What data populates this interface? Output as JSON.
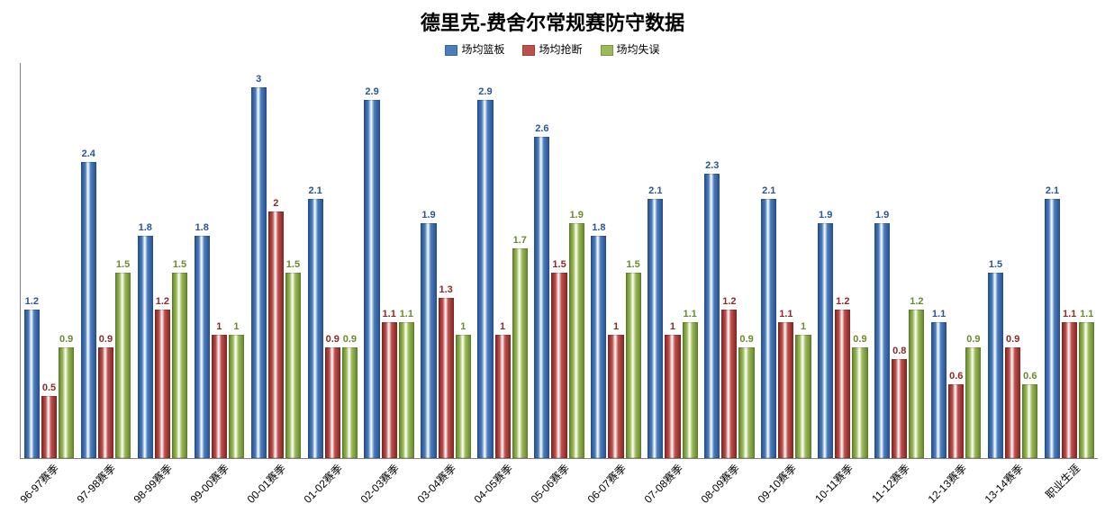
{
  "chart": {
    "type": "bar",
    "title": "德里克-费舍尔常规赛防守数据",
    "title_fontsize": 22,
    "title_color": "#000000",
    "background_color": "#ffffff",
    "axis_color": "#808080",
    "ymax": 3.2,
    "series": [
      {
        "name": "场均篮板",
        "color": "#4a7ebb",
        "label_color": "#2a5599",
        "gradient_dark": "#2a5599"
      },
      {
        "name": "场均抢断",
        "color": "#c0504d",
        "label_color": "#8b2a27",
        "gradient_dark": "#8b2a27"
      },
      {
        "name": "场均失误",
        "color": "#9bbb59",
        "label_color": "#6a8a2f",
        "gradient_dark": "#6a8a2f"
      }
    ],
    "categories": [
      "96-97赛季",
      "97-98赛季",
      "98-99赛季",
      "99-00赛季",
      "00-01赛季",
      "01-02赛季",
      "02-03赛季",
      "03-04赛季",
      "04-05赛季",
      "05-06赛季",
      "06-07赛季",
      "07-08赛季",
      "08-09赛季",
      "09-10赛季",
      "10-11赛季",
      "11-12赛季",
      "12-13赛季",
      "13-14赛季",
      "职业生涯"
    ],
    "data": [
      [
        1.2,
        0.5,
        0.9
      ],
      [
        2.4,
        0.9,
        1.5
      ],
      [
        1.8,
        1.2,
        1.5
      ],
      [
        1.8,
        1.0,
        1.0
      ],
      [
        3.0,
        2.0,
        1.5
      ],
      [
        2.1,
        0.9,
        0.9
      ],
      [
        2.9,
        1.1,
        1.1
      ],
      [
        1.9,
        1.3,
        1.0
      ],
      [
        2.9,
        1.0,
        1.7
      ],
      [
        2.6,
        1.5,
        1.9
      ],
      [
        1.8,
        1.0,
        1.5
      ],
      [
        2.1,
        1.0,
        1.1
      ],
      [
        2.3,
        1.2,
        0.9
      ],
      [
        2.1,
        1.1,
        1.0
      ],
      [
        1.9,
        1.2,
        0.9
      ],
      [
        1.9,
        0.8,
        1.2
      ],
      [
        1.1,
        0.6,
        0.9
      ],
      [
        1.5,
        0.9,
        0.6
      ],
      [
        2.1,
        1.1,
        1.1
      ]
    ],
    "label_fontsize": 11,
    "xlabel_fontsize": 12,
    "xlabel_rotation": -45
  }
}
